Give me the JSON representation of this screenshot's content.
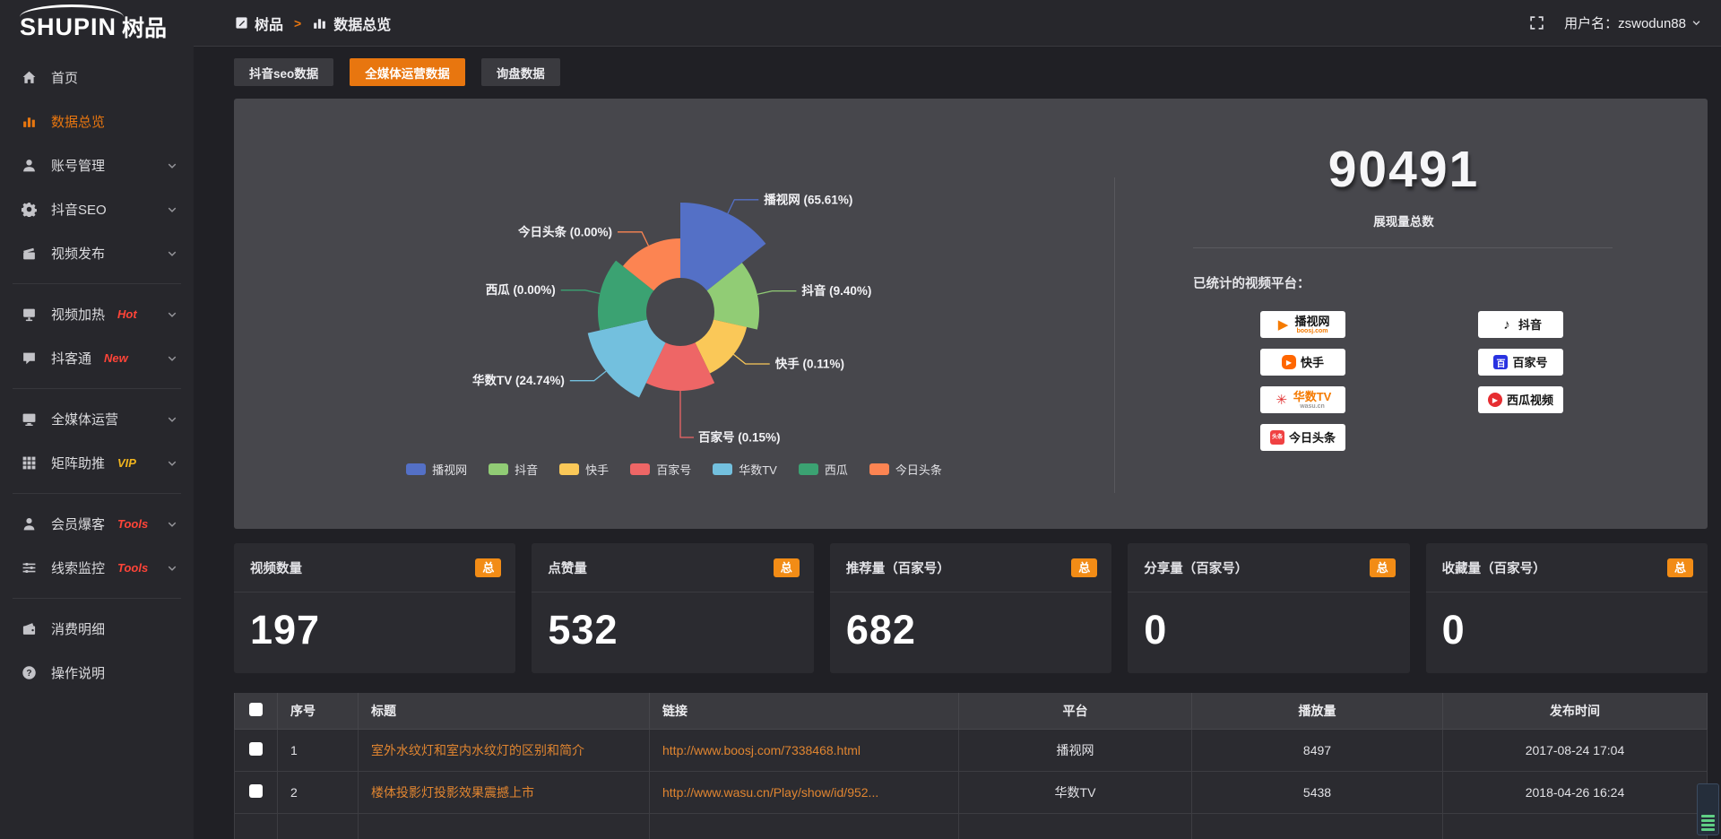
{
  "accent_color": "#e8760f",
  "badge_color": "#f28c16",
  "link_color": "#e08530",
  "topbar": {
    "breadcrumb": [
      {
        "id": "shupin",
        "label": "树品",
        "icon": "doc"
      },
      {
        "id": "data-overview",
        "label": "数据总览",
        "icon": "chart"
      }
    ],
    "separator": ">",
    "user_label": "用户名：zswodun88"
  },
  "sidebar": {
    "logo_en": "SHUPIN",
    "logo_cn": "树品",
    "items": [
      {
        "id": "home",
        "label": "首页",
        "icon": "home"
      },
      {
        "id": "data-overview",
        "label": "数据总览",
        "icon": "chart",
        "active": true
      },
      {
        "id": "account-manage",
        "label": "账号管理",
        "icon": "user",
        "chevron": true
      },
      {
        "id": "douyin-seo",
        "label": "抖音SEO",
        "icon": "gear",
        "chevron": true
      },
      {
        "id": "video-publish",
        "label": "视频发布",
        "icon": "publish",
        "chevron": true
      },
      {
        "divider": true
      },
      {
        "id": "video-heat",
        "label": "视频加热",
        "icon": "heat",
        "tag": "Hot",
        "tag_color": "#ff4438",
        "chevron": true
      },
      {
        "id": "douketong",
        "label": "抖客通",
        "icon": "chat",
        "tag": "New",
        "tag_color": "#ff4438",
        "chevron": true
      },
      {
        "divider": true
      },
      {
        "id": "media-operation",
        "label": "全媒体运营",
        "icon": "monitor",
        "chevron": true
      },
      {
        "id": "matrix-boost",
        "label": "矩阵助推",
        "icon": "grid",
        "tag": "VIP",
        "tag_color": "#f0b41e",
        "chevron": true
      },
      {
        "divider": true
      },
      {
        "id": "member-baoke",
        "label": "会员爆客",
        "icon": "person",
        "tag": "Tools",
        "tag_color": "#ff4438",
        "chevron": true
      },
      {
        "id": "clue-monitor",
        "label": "线索监控",
        "icon": "sliders",
        "tag": "Tools",
        "tag_color": "#ff4438",
        "chevron": true
      },
      {
        "divider": true
      },
      {
        "id": "consumption-detail",
        "label": "消费明细",
        "icon": "wallet"
      },
      {
        "id": "operation-guide",
        "label": "操作说明",
        "icon": "question"
      }
    ]
  },
  "tabs": [
    {
      "id": "douyin-seo-data",
      "label": "抖音seo数据",
      "active": false
    },
    {
      "id": "media-operation-data",
      "label": "全媒体运营数据",
      "active": true
    },
    {
      "id": "inquiry-data",
      "label": "询盘数据",
      "active": false
    }
  ],
  "chart_data": {
    "type": "pie",
    "variant": "nightingale-rose-donut",
    "labels": [
      "播视网",
      "抖音",
      "快手",
      "百家号",
      "华数TV",
      "西瓜",
      "今日头条"
    ],
    "values": [
      65.61,
      9.4,
      0.11,
      0.15,
      24.74,
      0.0,
      0.0
    ],
    "percent_labels": [
      "65.61%",
      "9.40%",
      "0.11%",
      "0.15%",
      "24.74%",
      "0.00%",
      "0.00%"
    ],
    "colors": [
      "#5470c6",
      "#91cc75",
      "#fac858",
      "#ee6666",
      "#73c0de",
      "#3ba272",
      "#fc8452"
    ],
    "legend_position": "bottom",
    "inner_radius": 38,
    "slice_radii": [
      122,
      88,
      76,
      88,
      106,
      92,
      82
    ]
  },
  "overview": {
    "total_value": "90491",
    "total_label": "展现量总数",
    "platforms_label": "已统计的视频平台：",
    "platform_columns": [
      [
        {
          "id": "boosj",
          "name": "播视网",
          "sub": "boosj.com",
          "sub_color": "#f57a00",
          "icon": "boosj",
          "icon_glyph": "▶"
        },
        {
          "id": "kuaishou",
          "name": "快手",
          "icon": "kuaishou",
          "icon_glyph": "▶"
        },
        {
          "id": "wasu",
          "name": "华数TV",
          "name_color": "#f57a00",
          "sub": "wasu.cn",
          "sub_color": "#999999",
          "icon": "wasu",
          "icon_glyph": "✳"
        },
        {
          "id": "toutiao",
          "name": "今日头条",
          "icon": "toutiao",
          "icon_glyph": "头条"
        }
      ],
      [
        {
          "id": "douyin",
          "name": "抖音",
          "icon": "douyin",
          "icon_glyph": "♪"
        },
        {
          "id": "baijiahao",
          "name": "百家号",
          "icon": "baijiahao",
          "icon_glyph": "百"
        },
        {
          "id": "xigua",
          "name": "西瓜视频",
          "icon": "xigua",
          "icon_glyph": "▶"
        }
      ]
    ]
  },
  "stat_cards": [
    {
      "id": "video-count",
      "title": "视频数量",
      "badge": "总",
      "value": "197"
    },
    {
      "id": "like-count",
      "title": "点赞量",
      "badge": "总",
      "value": "532"
    },
    {
      "id": "recommend-count",
      "title": "推荐量（百家号）",
      "badge": "总",
      "value": "682"
    },
    {
      "id": "share-count",
      "title": "分享量（百家号）",
      "badge": "总",
      "value": "0"
    },
    {
      "id": "favorite-count",
      "title": "收藏量（百家号）",
      "badge": "总",
      "value": "0"
    }
  ],
  "table": {
    "headers": [
      "序号",
      "标题",
      "链接",
      "平台",
      "播放量",
      "发布时间"
    ],
    "rows": [
      {
        "cells": [
          "1",
          "室外水纹灯和室内水纹灯的区别和简介",
          "http://www.boosj.com/7338468.html",
          "播视网",
          "8497",
          "2017-08-24 17:04"
        ]
      },
      {
        "cells": [
          "2",
          "楼体投影灯投影效果震撼上市",
          "http://www.wasu.cn/Play/show/id/952...",
          "华数TV",
          "5438",
          "2018-04-26 16:24"
        ]
      }
    ]
  }
}
